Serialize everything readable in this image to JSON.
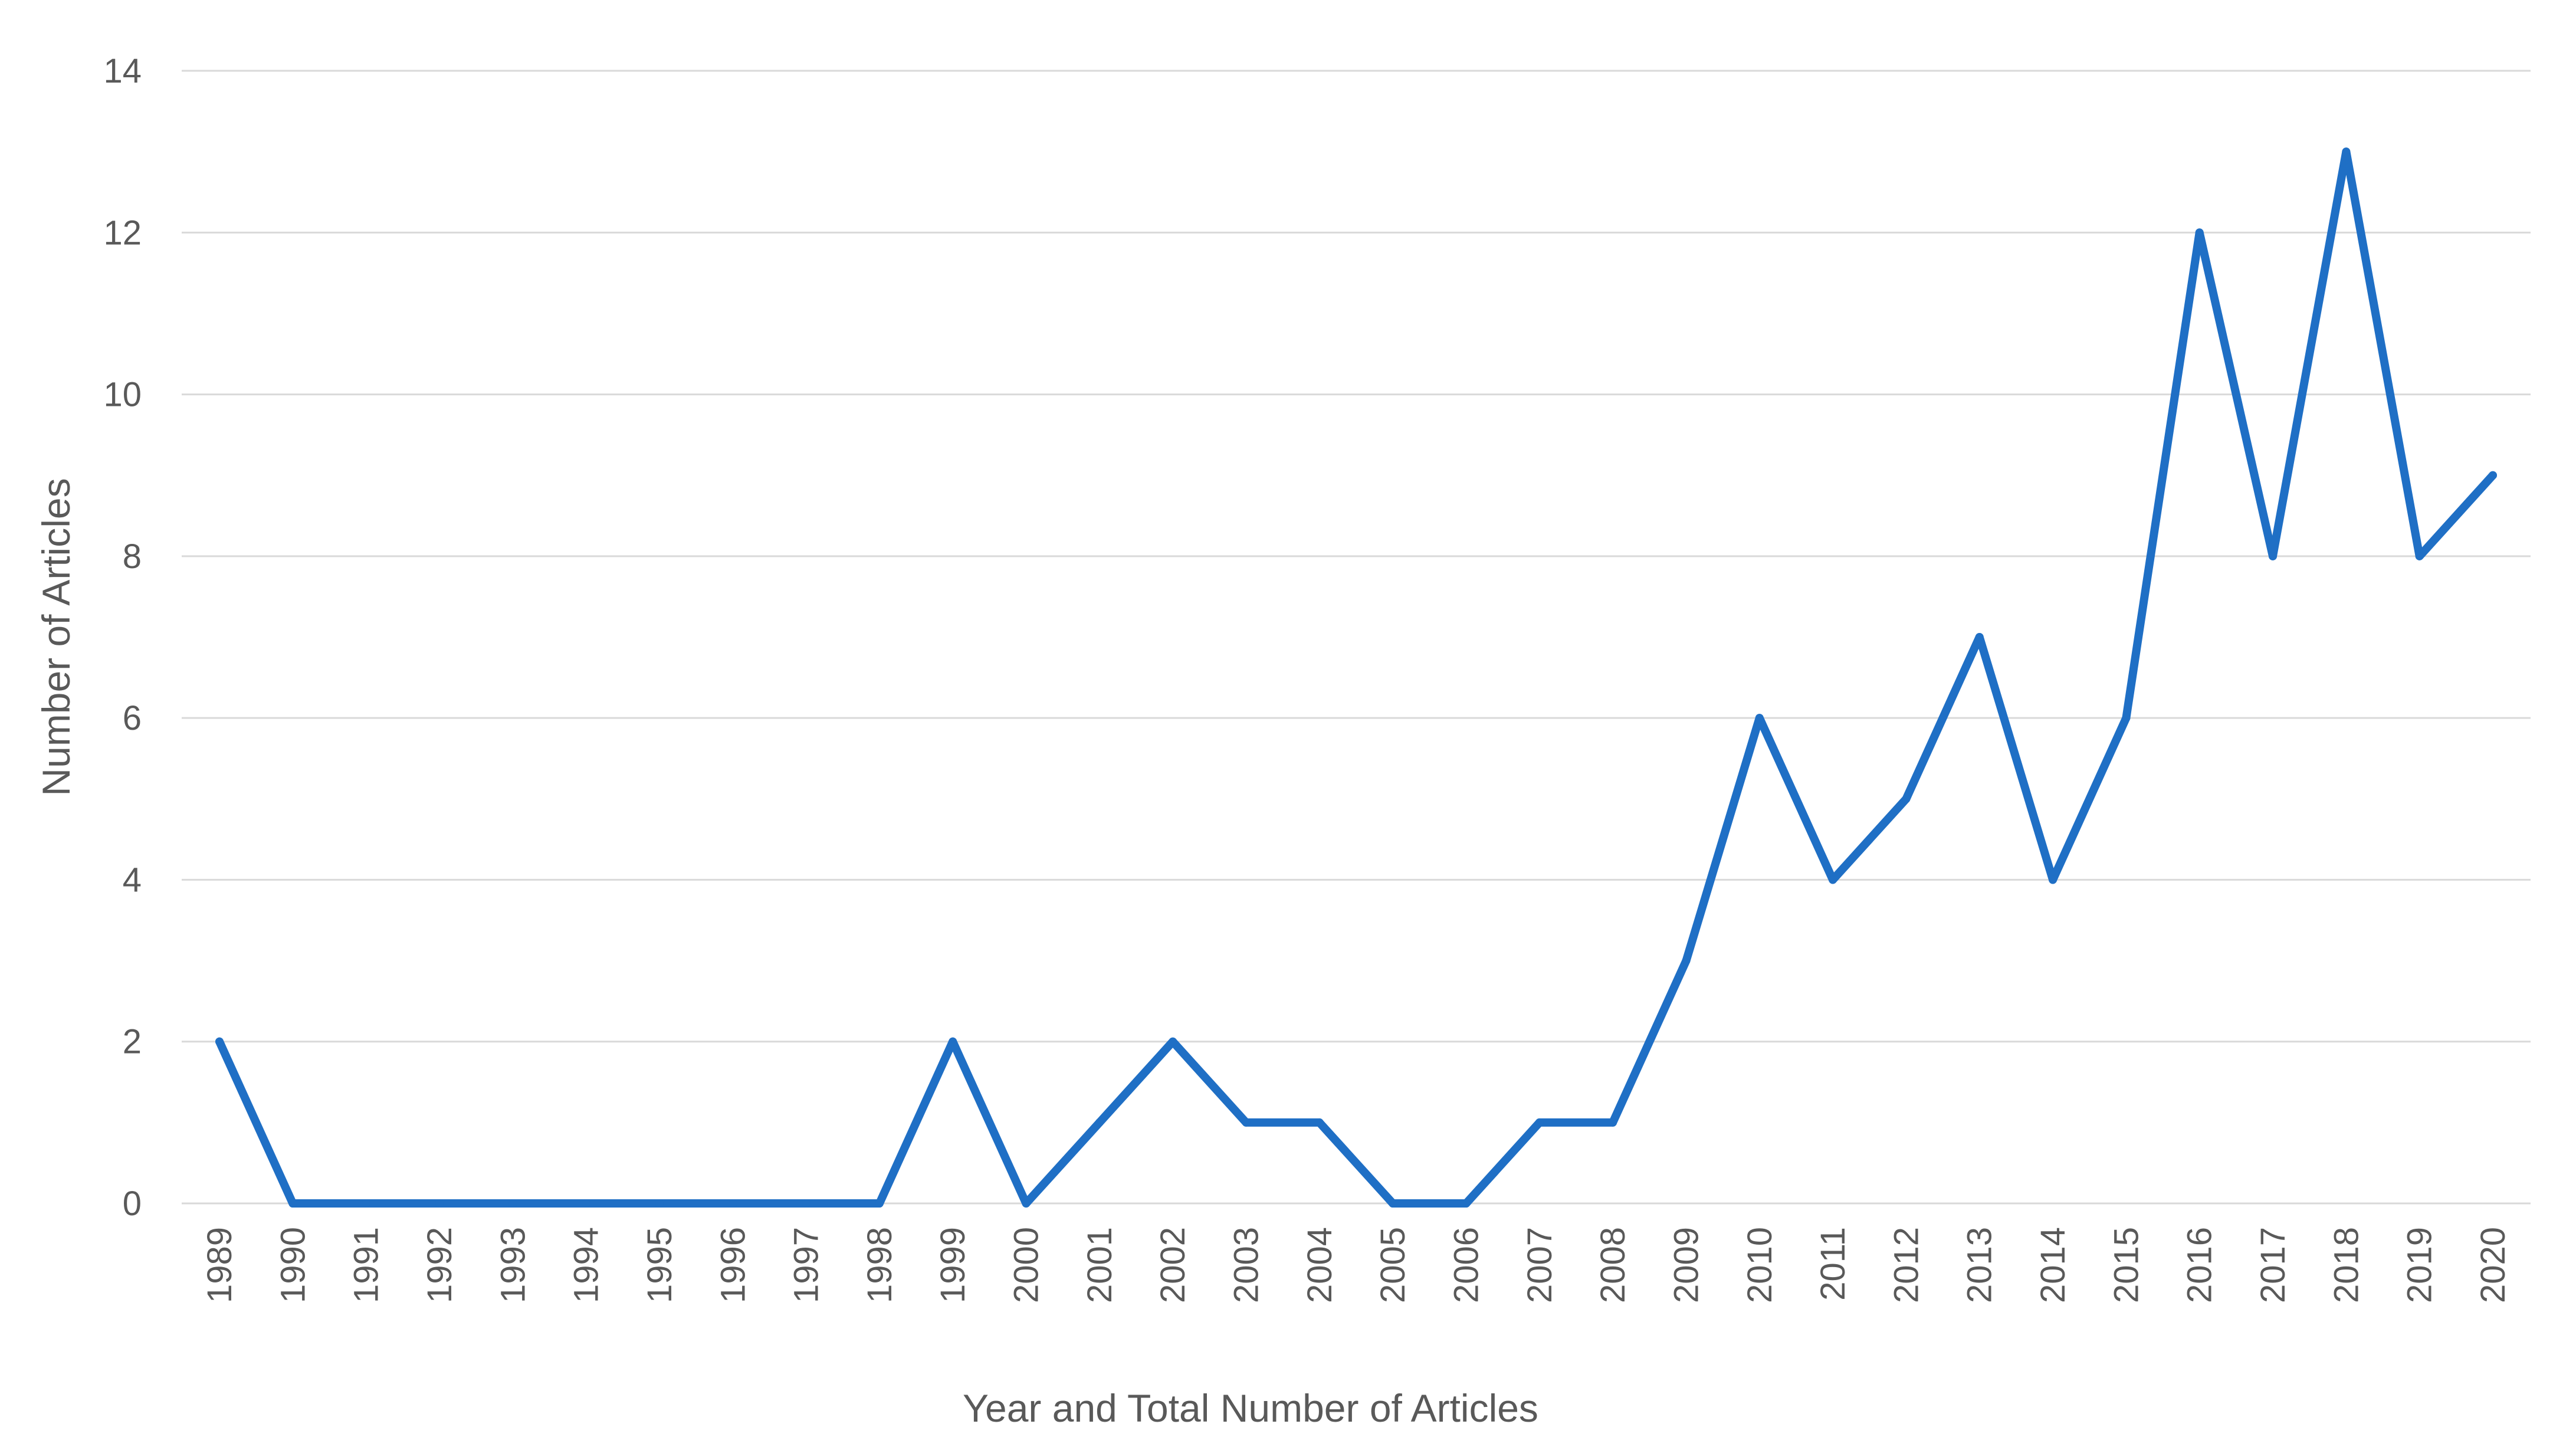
{
  "chart_data": {
    "type": "line",
    "title": "",
    "xlabel": "Year and Total Number of Articles",
    "ylabel": "Number of Articles",
    "ylim": [
      0,
      14
    ],
    "yticks": [
      0,
      2,
      4,
      6,
      8,
      10,
      12,
      14
    ],
    "grid": true,
    "legend": "none",
    "categories": [
      "1989",
      "1990",
      "1991",
      "1992",
      "1993",
      "1994",
      "1995",
      "1996",
      "1997",
      "1998",
      "1999",
      "2000",
      "2001",
      "2002",
      "2003",
      "2004",
      "2005",
      "2006",
      "2007",
      "2008",
      "2009",
      "2010",
      "2011",
      "2012",
      "2013",
      "2014",
      "2015",
      "2016",
      "2017",
      "2018",
      "2019",
      "2020"
    ],
    "series": [
      {
        "color": "#1f6fc5",
        "values": [
          2,
          0,
          0,
          0,
          0,
          0,
          0,
          0,
          0,
          0,
          2,
          0,
          1,
          2,
          1,
          1,
          0,
          0,
          1,
          1,
          3,
          6,
          4,
          5,
          7,
          4,
          6,
          12,
          8,
          13,
          8,
          9
        ]
      }
    ]
  }
}
